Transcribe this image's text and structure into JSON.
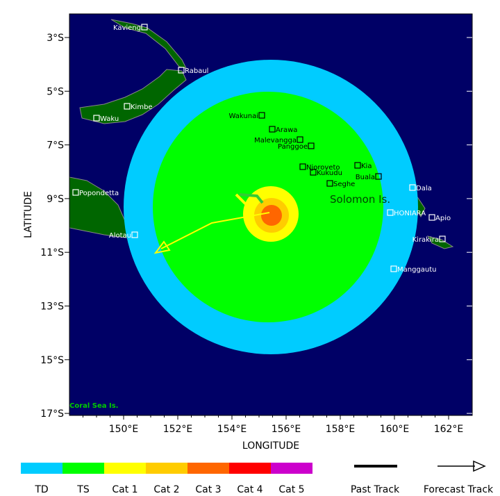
{
  "map": {
    "xlabel": "LONGITUDE",
    "ylabel": "LATITUDE",
    "lon_ticks": [
      "150°E",
      "152°E",
      "154°E",
      "156°E",
      "158°E",
      "160°E",
      "162°E"
    ],
    "lat_ticks": [
      "3°S",
      "5°S",
      "7°S",
      "9°S",
      "11°S",
      "13°S",
      "15°S",
      "17°S"
    ],
    "region_label": "Solomon Is.",
    "corner_label": "Coral Sea Is.",
    "ocean_color": "#000066",
    "land_color": "#006600",
    "cities": [
      {
        "name": "Kavieng",
        "color": "#ffffff",
        "side": "left"
      },
      {
        "name": "Rabaul",
        "color": "#ffffff",
        "side": "right"
      },
      {
        "name": "Kimbe",
        "color": "#ffffff",
        "side": "right"
      },
      {
        "name": "Waku",
        "color": "#ffffff",
        "side": "right"
      },
      {
        "name": "Popondetta",
        "color": "#ffffff",
        "side": "right"
      },
      {
        "name": "Alotau",
        "color": "#ffffff",
        "side": "left"
      },
      {
        "name": "Wakunai",
        "color": "#000000",
        "side": "left"
      },
      {
        "name": "Arawa",
        "color": "#000000",
        "side": "right"
      },
      {
        "name": "Malevangga",
        "color": "#000000",
        "side": "left"
      },
      {
        "name": "Panggoe",
        "color": "#000000",
        "side": "left"
      },
      {
        "name": "Njoroveto",
        "color": "#000000",
        "side": "right"
      },
      {
        "name": "Kukudu",
        "color": "#000000",
        "side": "right"
      },
      {
        "name": "Seghe",
        "color": "#000000",
        "side": "right"
      },
      {
        "name": "Kia",
        "color": "#000000",
        "side": "right"
      },
      {
        "name": "Buala",
        "color": "#000000",
        "side": "left"
      },
      {
        "name": "Dala",
        "color": "#ffffff",
        "side": "right"
      },
      {
        "name": "HONIARA",
        "color": "#ffffff",
        "side": "right"
      },
      {
        "name": "Apio",
        "color": "#ffffff",
        "side": "right"
      },
      {
        "name": "Kirakira",
        "color": "#ffffff",
        "side": "left"
      },
      {
        "name": "Manggautu",
        "color": "#ffffff",
        "side": "right"
      }
    ],
    "wind_zones": [
      {
        "category": "TD",
        "color": "#00ccff"
      },
      {
        "category": "TS",
        "color": "#00ff00"
      },
      {
        "category": "Cat 1",
        "color": "#ffff00"
      },
      {
        "category": "Cat 2",
        "color": "#ffcc00"
      },
      {
        "category": "Cat 3",
        "color": "#ff6600"
      }
    ]
  },
  "legend": {
    "categories": [
      {
        "label": "TD",
        "color": "#00ccff"
      },
      {
        "label": "TS",
        "color": "#00ff00"
      },
      {
        "label": "Cat 1",
        "color": "#ffff00"
      },
      {
        "label": "Cat 2",
        "color": "#ffcc00"
      },
      {
        "label": "Cat 3",
        "color": "#ff6600"
      },
      {
        "label": "Cat 4",
        "color": "#ff0000"
      },
      {
        "label": "Cat 5",
        "color": "#cc00cc"
      }
    ],
    "past_track": "Past Track",
    "forecast_track": "Forecast Track"
  }
}
